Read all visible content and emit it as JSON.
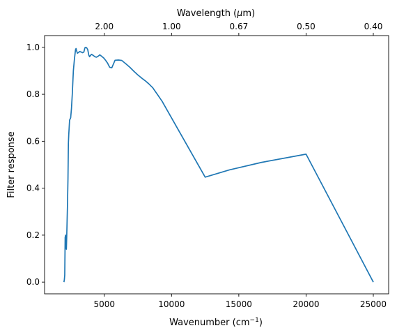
{
  "chart_data": {
    "type": "line",
    "xlabel": "Wavenumber (cm",
    "xlabel_sup": "−1",
    "xlabel_end": ")",
    "ylabel": "Filter response",
    "top_xlabel": "Wavelength (",
    "top_xlabel_mu": "μ",
    "top_xlabel_end": "m)",
    "xlim": [
      560,
      26140
    ],
    "ylim": [
      -0.05,
      1.05
    ],
    "x_ticks": [
      5000,
      10000,
      15000,
      20000,
      25000
    ],
    "x_tick_labels": [
      "5000",
      "10000",
      "15000",
      "20000",
      "25000"
    ],
    "y_ticks": [
      0.0,
      0.2,
      0.4,
      0.6,
      0.8,
      1.0
    ],
    "y_tick_labels": [
      "0.0",
      "0.2",
      "0.4",
      "0.6",
      "0.8",
      "1.0"
    ],
    "top_ticks": [
      5000,
      10000,
      15000,
      20000,
      25000
    ],
    "top_tick_labels": [
      "2.00",
      "1.00",
      "0.67",
      "0.50",
      "0.40"
    ],
    "grid": false,
    "line_color": "#1f77b4",
    "series": [
      {
        "x": [
          2000,
          2030,
          2060,
          2090,
          2120,
          2150,
          2180,
          2210,
          2260,
          2300,
          2330,
          2360,
          2420,
          2500,
          2560,
          2620,
          2700,
          2780,
          2860,
          2900,
          2940,
          3000,
          3080,
          3170,
          3280,
          3380,
          3480,
          3560,
          3620,
          3690,
          3770,
          3850,
          3910,
          3960,
          4050,
          4170,
          4300,
          4420,
          4540,
          4660,
          4800,
          4950,
          5080,
          5240,
          5400,
          5560,
          5800,
          6050,
          6300,
          6600,
          6900,
          7200,
          7500,
          7800,
          8100,
          8300,
          8600,
          9000,
          9300,
          12500,
          14300,
          16700,
          20000,
          25000
        ],
        "y": [
          0.0,
          0.01,
          0.03,
          0.19,
          0.2,
          0.15,
          0.14,
          0.2,
          0.32,
          0.44,
          0.59,
          0.63,
          0.69,
          0.7,
          0.74,
          0.8,
          0.9,
          0.95,
          0.99,
          0.995,
          0.985,
          0.975,
          0.978,
          0.982,
          0.98,
          0.977,
          0.98,
          0.998,
          1.0,
          0.998,
          0.99,
          0.966,
          0.96,
          0.965,
          0.97,
          0.966,
          0.96,
          0.958,
          0.962,
          0.968,
          0.962,
          0.955,
          0.946,
          0.933,
          0.915,
          0.913,
          0.945,
          0.946,
          0.944,
          0.93,
          0.915,
          0.898,
          0.882,
          0.868,
          0.855,
          0.845,
          0.828,
          0.795,
          0.77,
          0.447,
          0.478,
          0.51,
          0.545,
          0.0
        ]
      }
    ]
  }
}
